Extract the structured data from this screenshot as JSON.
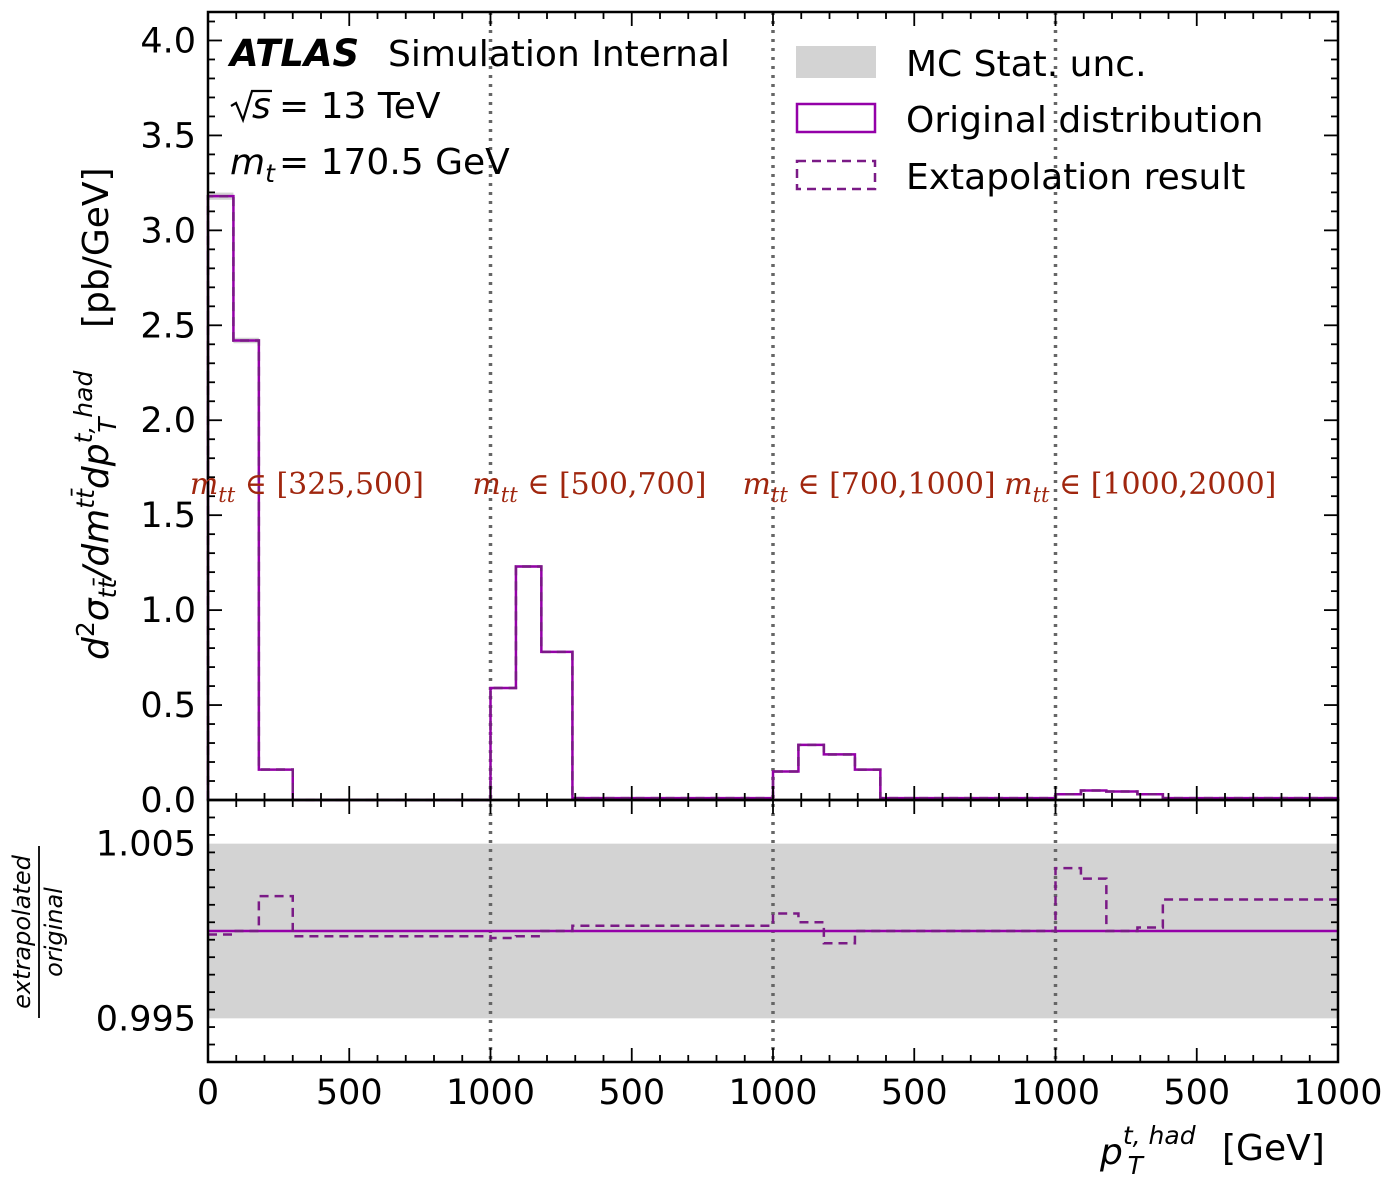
{
  "chart_data": {
    "type": "step-histogram",
    "experiment": "ATLAS",
    "experiment_status": "Simulation Internal",
    "energy_text": "= 13 TeV",
    "mass_text": "= 170.5 GeV",
    "x_title": "[GeV]",
    "y_title": "[pb/GeV]",
    "ratio_title": "extrapolated / original",
    "legend": {
      "stat_band": "MC Stat. unc.",
      "original": "Original distribution",
      "extrapolated": "Extapolation result"
    },
    "colors": {
      "original": "#9400a8",
      "extrapolated": "#7a1a86",
      "band": "#d3d3d3",
      "region_label": "#a0260e",
      "divider": "#666666"
    },
    "region_labels": [
      "[325,500]",
      "[500,700]",
      "[700,1000]",
      "[1000,2000]"
    ],
    "x_tick_labels": [
      "0",
      "500",
      "1000",
      "500",
      "1000",
      "500",
      "1000",
      "500",
      "1000"
    ],
    "main_ylim": [
      0.0,
      4.15
    ],
    "main_y_ticks": [
      "0.0",
      "0.5",
      "1.0",
      "1.5",
      "2.0",
      "2.5",
      "3.0",
      "3.5",
      "4.0"
    ],
    "ratio_ylim": [
      0.9925,
      1.0075
    ],
    "ratio_y_ticks": [
      "0.995",
      "1.005"
    ],
    "ratio_band": [
      0.995,
      1.005
    ],
    "x_range": [
      0,
      4000
    ],
    "bin_edges": [
      0,
      90,
      180,
      300,
      1000,
      1090,
      1180,
      1290,
      2000,
      2090,
      2180,
      2290,
      2380,
      3000,
      3090,
      3180,
      3290,
      3380,
      4000
    ],
    "original_values": [
      3.18,
      2.42,
      0.16,
      0.0,
      0.59,
      1.23,
      0.78,
      0.01,
      0.15,
      0.29,
      0.24,
      0.16,
      0.01,
      0.03,
      0.05,
      0.045,
      0.03,
      0.01
    ],
    "ratio_values": [
      0.9998,
      1.0,
      1.002,
      0.9997,
      0.9996,
      0.9997,
      1.0,
      1.0003,
      1.001,
      1.0005,
      0.9993,
      1.0,
      1.0,
      1.0036,
      1.003,
      1.0,
      1.0002,
      1.0018
    ],
    "stat_unc_fraction": 0.006
  }
}
